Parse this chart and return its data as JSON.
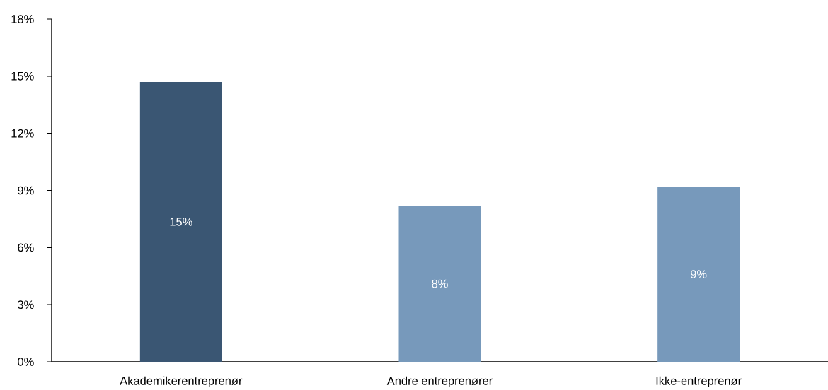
{
  "chart_data": {
    "type": "bar",
    "categories": [
      "Akademikerentreprenør",
      "Andre entreprenører",
      "Ikke-entreprenør"
    ],
    "values": [
      14.7,
      8.2,
      9.2
    ],
    "colors": [
      "#3a5673",
      "#7799bb",
      "#7799bb"
    ],
    "value_labels": [
      "15%",
      "8%",
      "9%"
    ],
    "ylim": [
      0,
      18
    ],
    "yticks": [
      {
        "value": 0,
        "label": "0%"
      },
      {
        "value": 3,
        "label": "3%"
      },
      {
        "value": 6,
        "label": "6%"
      },
      {
        "value": 9,
        "label": "9%"
      },
      {
        "value": 12,
        "label": "12%"
      },
      {
        "value": 15,
        "label": "15%"
      },
      {
        "value": 18,
        "label": "18%"
      }
    ]
  }
}
